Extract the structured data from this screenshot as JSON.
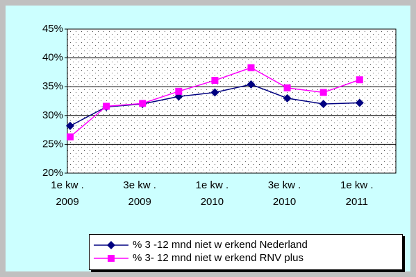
{
  "chart_data": {
    "type": "line",
    "categories": [
      "1e kw . 2009",
      null,
      "3e kw . 2009",
      null,
      "1e kw . 2010",
      null,
      "3e kw . 2010",
      null,
      "1e kw . 2011"
    ],
    "series": [
      {
        "name": "% 3 -12 mnd niet w erkend Nederland",
        "color": "#000080",
        "marker": "diamond",
        "values": [
          28.2,
          31.5,
          32.0,
          33.3,
          34.0,
          35.4,
          33.0,
          32.0,
          32.2
        ]
      },
      {
        "name": "% 3- 12 mnd niet w erkend RNV plus",
        "color": "#ff00ff",
        "marker": "square",
        "values": [
          26.3,
          31.6,
          32.1,
          34.2,
          36.1,
          38.3,
          34.8,
          34.0,
          36.2
        ]
      }
    ],
    "ylim": [
      20,
      45
    ],
    "yticks": [
      {
        "value": 20,
        "label": "20%"
      },
      {
        "value": 25,
        "label": "25%"
      },
      {
        "value": 30,
        "label": "30%"
      },
      {
        "value": 35,
        "label": "35%"
      },
      {
        "value": 40,
        "label": "40%"
      },
      {
        "value": 45,
        "label": "45%"
      }
    ],
    "grid": true
  }
}
